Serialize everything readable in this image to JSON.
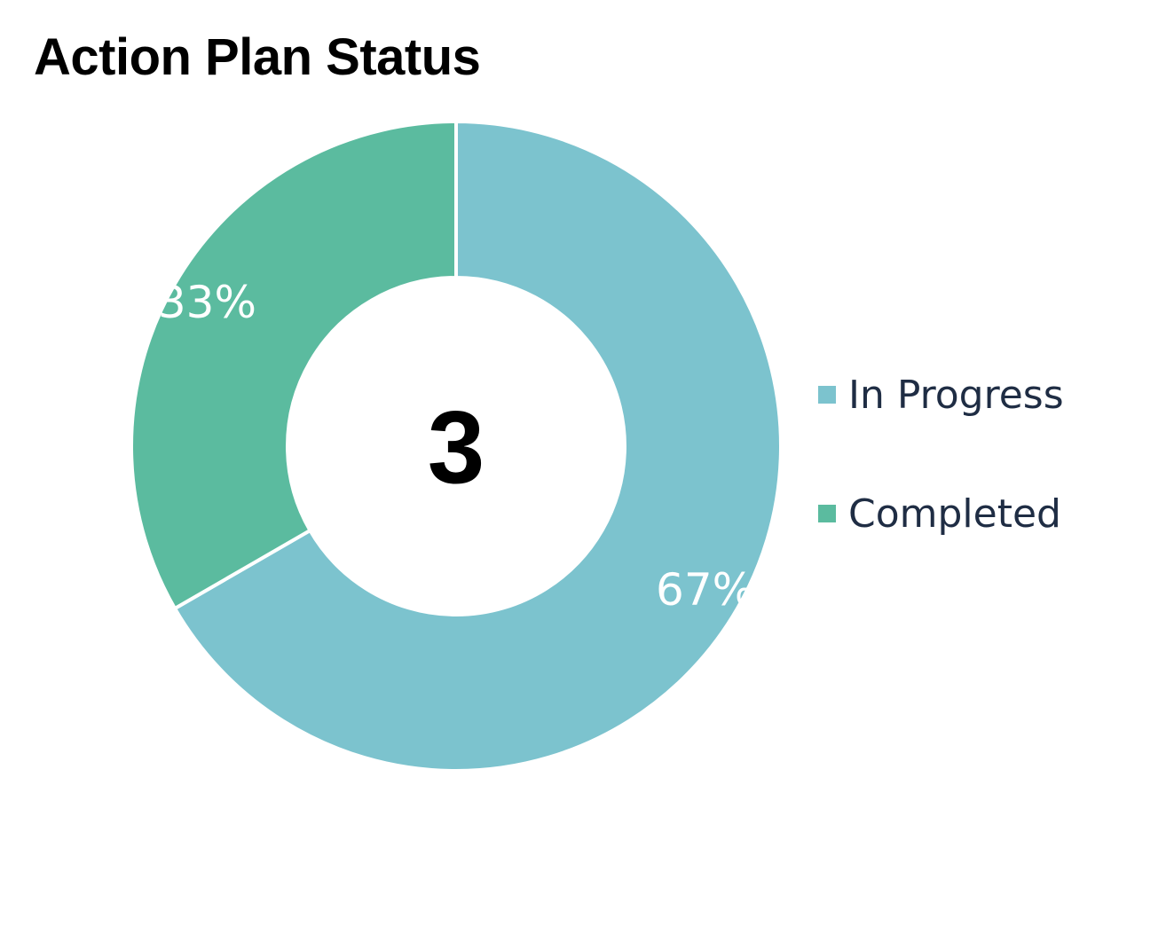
{
  "chart_data": {
    "type": "pie",
    "variant": "donut",
    "title": "Action Plan Status",
    "center_value": "3",
    "categories": [
      "In Progress",
      "Completed"
    ],
    "values": [
      2,
      1
    ],
    "labels": [
      "67%",
      "33%"
    ],
    "colors": [
      "#7cc3ce",
      "#5bbb9f"
    ],
    "legend_position": "right"
  }
}
